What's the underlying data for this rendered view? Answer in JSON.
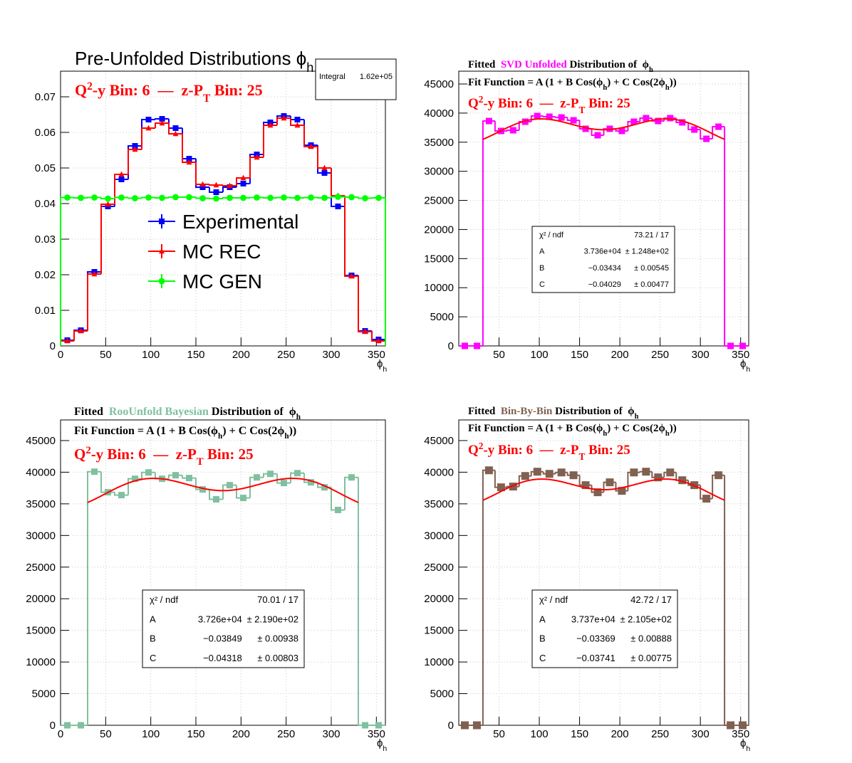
{
  "chart_data": [
    {
      "type": "histogram",
      "title": [
        "Pre-Unfolded Distributions ϕ",
        {
          "sub": "h"
        }
      ],
      "annotation": [
        "Q",
        {
          "sup": "2"
        },
        "-y Bin: 6  —  z-P",
        {
          "sub": "T"
        },
        " Bin: 25"
      ],
      "annotation_color": "#ff0000",
      "xlabel": [
        "ϕ",
        {
          "sub": "h"
        }
      ],
      "bins": [
        0,
        15,
        30,
        45,
        60,
        75,
        90,
        105,
        120,
        135,
        150,
        165,
        180,
        195,
        210,
        225,
        240,
        255,
        270,
        285,
        300,
        315,
        330,
        345,
        360
      ],
      "series": [
        {
          "name": "Experimental",
          "color": "#0000ff",
          "marker": "square",
          "values": [
            0.0016,
            0.0044,
            0.0208,
            0.0392,
            0.0468,
            0.0562,
            0.0636,
            0.0638,
            0.0612,
            0.0526,
            0.0446,
            0.0432,
            0.0446,
            0.0456,
            0.0538,
            0.0628,
            0.0646,
            0.0636,
            0.0564,
            0.0486,
            0.0392,
            0.0198,
            0.0042,
            0.0018
          ]
        },
        {
          "name": "MC REC",
          "color": "#ff0000",
          "marker": "triangle",
          "values": [
            0.0014,
            0.0042,
            0.0202,
            0.0398,
            0.0482,
            0.0552,
            0.0612,
            0.0626,
            0.0596,
            0.0516,
            0.0454,
            0.0452,
            0.045,
            0.0472,
            0.053,
            0.062,
            0.064,
            0.062,
            0.056,
            0.05,
            0.0422,
            0.0196,
            0.004,
            0.0014
          ]
        },
        {
          "name": "MC GEN",
          "color": "#00ff00",
          "marker": "circle",
          "values": [
            0.0417,
            0.0416,
            0.0417,
            0.0414,
            0.0417,
            0.0415,
            0.0417,
            0.0416,
            0.0418,
            0.0418,
            0.0415,
            0.0414,
            0.0416,
            0.0416,
            0.0417,
            0.0416,
            0.0417,
            0.0416,
            0.0417,
            0.0416,
            0.0419,
            0.0418,
            0.0415,
            0.0416
          ]
        }
      ],
      "xlim": [
        0,
        360
      ],
      "ylim": [
        0,
        0.0772
      ],
      "xticks": [
        0,
        50,
        100,
        150,
        200,
        250,
        300,
        350
      ],
      "yticks": [
        0,
        0.01,
        0.02,
        0.03,
        0.04,
        0.05,
        0.06,
        0.07
      ],
      "grid": true,
      "stats": [
        {
          "name": "Integral",
          "value": "1.62e+05"
        }
      ]
    },
    {
      "type": "histogram",
      "title": [
        "Fitted  ",
        {
          "text": "SVD Unfolded",
          "color": "#ff00ff"
        },
        " Distribution of  ϕ",
        {
          "sub": "h"
        }
      ],
      "fit_function": [
        "Fit Function = A (1 + B Cos(ϕ",
        {
          "sub": "h"
        },
        ") + C Cos(2ϕ",
        {
          "sub": "h"
        },
        "))"
      ],
      "annotation": [
        "Q",
        {
          "sup": "2"
        },
        "-y Bin: 6  —  z-P",
        {
          "sub": "T"
        },
        " Bin: 25"
      ],
      "annotation_color": "#ff0000",
      "xlabel": [
        "ϕ",
        {
          "sub": "h"
        }
      ],
      "bins": [
        0,
        15,
        30,
        45,
        60,
        75,
        90,
        105,
        120,
        135,
        150,
        165,
        180,
        195,
        210,
        225,
        240,
        255,
        270,
        285,
        300,
        315,
        330,
        345,
        360
      ],
      "series": [
        {
          "color": "#ff00ff",
          "marker": "square",
          "values": [
            0,
            0,
            38640,
            36930,
            37050,
            38520,
            39500,
            39370,
            39250,
            38760,
            37300,
            36190,
            37300,
            36930,
            38520,
            39130,
            38640,
            39130,
            38400,
            37170,
            35580,
            37660,
            0,
            0
          ]
        }
      ],
      "fit": {
        "color": "#ff0000",
        "range": [
          30,
          330
        ],
        "chi2_label": "χ² / ndf",
        "chi2": "73.21 / 17",
        "params": [
          {
            "name": "A",
            "value": 37360,
            "label": "3.736e+04",
            "error_label": "± 1.248e+02"
          },
          {
            "name": "B",
            "value": -0.03434,
            "label": "−0.03434",
            "error_label": "± 0.00545"
          },
          {
            "name": "C",
            "value": -0.04029,
            "label": "−0.04029",
            "error_label": "± 0.00477"
          }
        ]
      },
      "xlim": [
        0,
        360
      ],
      "ylim": [
        0,
        47200
      ],
      "xticks": [
        50,
        100,
        150,
        200,
        250,
        300,
        350
      ],
      "yticks": [
        0,
        5000,
        10000,
        15000,
        20000,
        25000,
        30000,
        35000,
        40000,
        45000
      ],
      "grid": true
    },
    {
      "type": "histogram",
      "title": [
        "Fitted  ",
        {
          "text": "RooUnfold Bayesian",
          "color": "#80c0a0"
        },
        " Distribution of  ϕ",
        {
          "sub": "h"
        }
      ],
      "fit_function": [
        "Fit Function = A (1 + B Cos(ϕ",
        {
          "sub": "h"
        },
        ") + C Cos(2ϕ",
        {
          "sub": "h"
        },
        "))"
      ],
      "annotation": [
        "Q",
        {
          "sup": "2"
        },
        "-y Bin: 6  —  z-P",
        {
          "sub": "T"
        },
        " Bin: 25"
      ],
      "annotation_color": "#ff0000",
      "xlabel": [
        "ϕ",
        {
          "sub": "h"
        }
      ],
      "bins": [
        0,
        15,
        30,
        45,
        60,
        75,
        90,
        105,
        120,
        135,
        150,
        165,
        180,
        195,
        210,
        225,
        240,
        255,
        270,
        285,
        300,
        315,
        330,
        345,
        360
      ],
      "series": [
        {
          "color": "#80c0a0",
          "marker": "square",
          "values": [
            0,
            0,
            40080,
            36830,
            36380,
            38960,
            39960,
            38960,
            39520,
            39070,
            37280,
            35710,
            37950,
            35930,
            39180,
            39740,
            38290,
            39850,
            38400,
            37610,
            34030,
            39180,
            0,
            0
          ]
        }
      ],
      "fit": {
        "color": "#ff0000",
        "range": [
          30,
          330
        ],
        "chi2_label": "χ² / ndf",
        "chi2": "70.01 / 17",
        "params": [
          {
            "name": "A",
            "value": 37260,
            "label": "3.726e+04",
            "error_label": "± 2.190e+02"
          },
          {
            "name": "B",
            "value": -0.03849,
            "label": "−0.03849",
            "error_label": "± 0.00938"
          },
          {
            "name": "C",
            "value": -0.04318,
            "label": "−0.04318",
            "error_label": "± 0.00803"
          }
        ]
      },
      "xlim": [
        0,
        360
      ],
      "ylim": [
        0,
        48260
      ],
      "xticks": [
        0,
        50,
        100,
        150,
        200,
        250,
        300,
        350
      ],
      "yticks": [
        0,
        5000,
        10000,
        15000,
        20000,
        25000,
        30000,
        35000,
        40000,
        45000
      ],
      "grid": true
    },
    {
      "type": "histogram",
      "title": [
        "Fitted  ",
        {
          "text": "Bin-By-Bin",
          "color": "#806050"
        },
        " Distribution of  ϕ",
        {
          "sub": "h"
        }
      ],
      "fit_function": [
        "Fit Function = A (1 + B Cos(ϕ",
        {
          "sub": "h"
        },
        ") + C Cos(2ϕ",
        {
          "sub": "h"
        },
        "))"
      ],
      "annotation": [
        "Q",
        {
          "sup": "2"
        },
        "-y Bin: 6  —  z-P",
        {
          "sub": "T"
        },
        " Bin: 25"
      ],
      "annotation_color": "#ff0000",
      "xlabel": [
        "ϕ",
        {
          "sub": "h"
        }
      ],
      "bins": [
        0,
        15,
        30,
        45,
        60,
        75,
        90,
        105,
        120,
        135,
        150,
        165,
        180,
        195,
        210,
        225,
        240,
        255,
        270,
        285,
        300,
        315,
        330,
        345,
        360
      ],
      "series": [
        {
          "color": "#806050",
          "marker": "square",
          "values": [
            0,
            0,
            40300,
            37610,
            37730,
            39400,
            40080,
            39740,
            39960,
            39520,
            37950,
            36830,
            38400,
            37050,
            39960,
            40080,
            39180,
            39960,
            38730,
            37950,
            35820,
            39520,
            0,
            0
          ]
        }
      ],
      "fit": {
        "color": "#ff0000",
        "range": [
          30,
          330
        ],
        "chi2_label": "χ² / ndf",
        "chi2": "42.72 / 17",
        "params": [
          {
            "name": "A",
            "value": 37370,
            "label": "3.737e+04",
            "error_label": "± 2.105e+02"
          },
          {
            "name": "B",
            "value": -0.03369,
            "label": "−0.03369",
            "error_label": "± 0.00888"
          },
          {
            "name": "C",
            "value": -0.03741,
            "label": "−0.03741",
            "error_label": "± 0.00775"
          }
        ]
      },
      "xlim": [
        0,
        360
      ],
      "ylim": [
        0,
        48260
      ],
      "xticks": [
        50,
        100,
        150,
        200,
        250,
        300,
        350
      ],
      "yticks": [
        0,
        5000,
        10000,
        15000,
        20000,
        25000,
        30000,
        35000,
        40000,
        45000
      ],
      "grid": true
    }
  ]
}
